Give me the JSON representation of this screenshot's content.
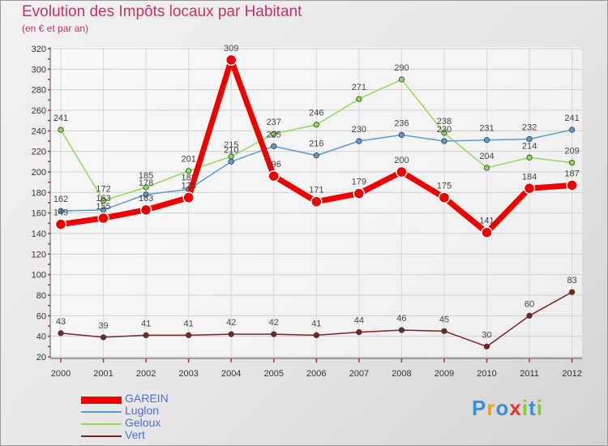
{
  "chart_data": {
    "type": "line",
    "title": "Evolution des Impôts locaux par Habitant",
    "subtitle": "(en € et par an)",
    "categories": [
      "2000",
      "2001",
      "2002",
      "2003",
      "2004",
      "2005",
      "2006",
      "2007",
      "2008",
      "2009",
      "2010",
      "2011",
      "2012"
    ],
    "ylim": [
      20,
      320
    ],
    "yticks": [
      20,
      40,
      60,
      80,
      100,
      120,
      140,
      160,
      180,
      200,
      220,
      240,
      260,
      280,
      300,
      320
    ],
    "grid": true,
    "legend_position": "bottom-left",
    "series": [
      {
        "name": "Vert",
        "color": "#7a2424",
        "values": [
          43,
          39,
          41,
          41,
          42,
          42,
          41,
          44,
          46,
          45,
          30,
          60,
          83
        ]
      },
      {
        "name": "Geloux",
        "color": "#8fdc5a",
        "values": [
          241,
          172,
          185,
          201,
          215,
          237,
          246,
          271,
          290,
          238,
          204,
          214,
          209
        ]
      },
      {
        "name": "Luglon",
        "color": "#5b9bd5",
        "values": [
          162,
          163,
          178,
          183,
          210,
          225,
          216,
          230,
          236,
          230,
          231,
          232,
          241
        ]
      },
      {
        "name": "GAREIN",
        "color": "#ee0000",
        "values": [
          149,
          155,
          163,
          175,
          309,
          196,
          171,
          179,
          200,
          175,
          141,
          184,
          187
        ]
      }
    ],
    "legend_order": [
      "GAREIN",
      "Luglon",
      "Geloux",
      "Vert"
    ]
  },
  "logo": {
    "text": "Proxiti",
    "letters": [
      "P",
      "r",
      "o",
      "x",
      "i",
      "t",
      "i"
    ]
  }
}
